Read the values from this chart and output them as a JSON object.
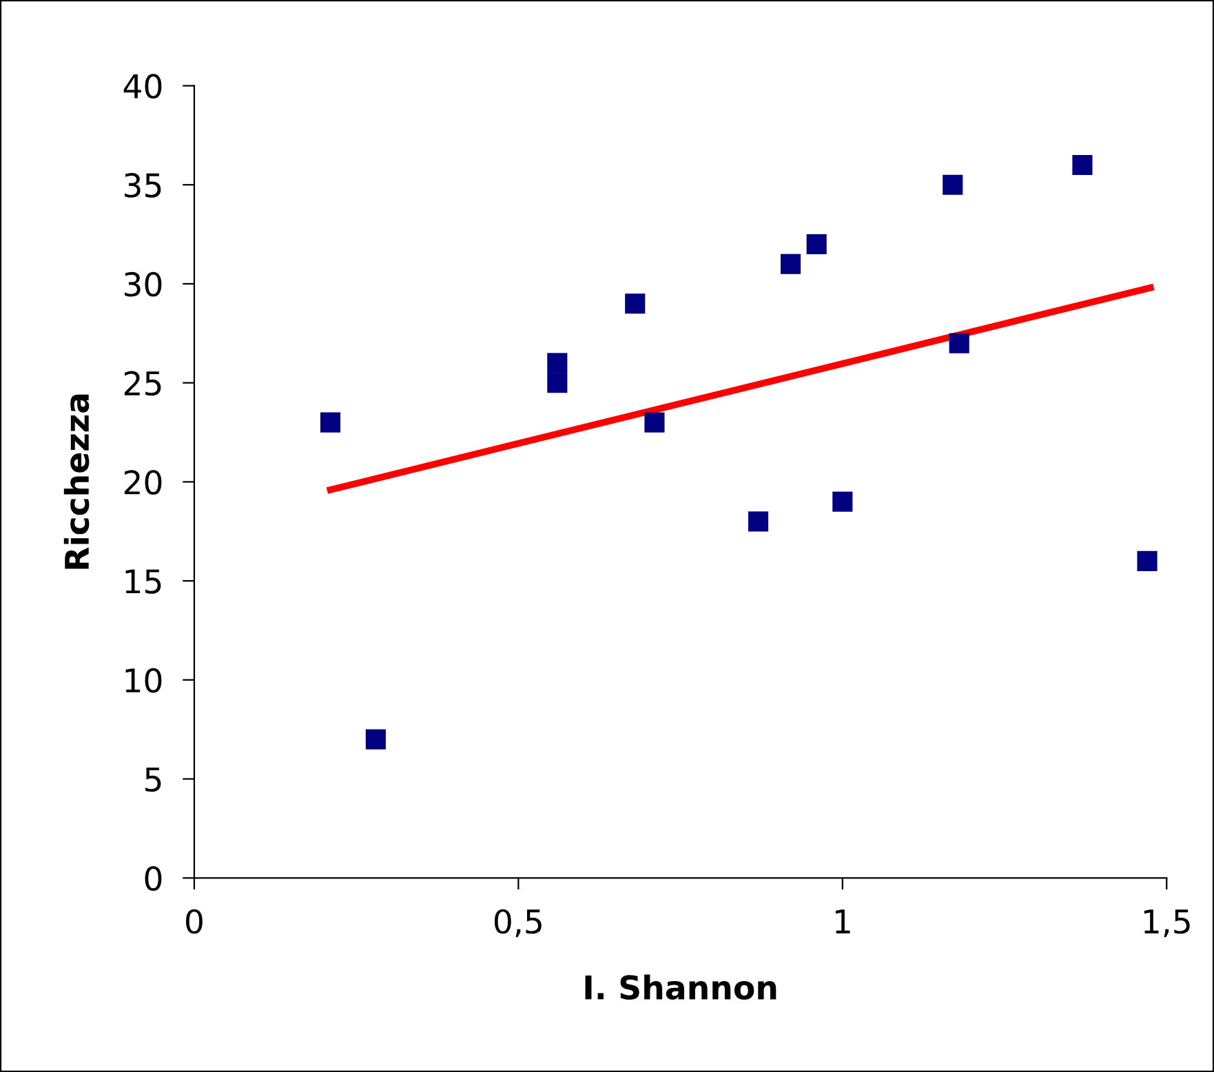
{
  "chart_data": {
    "type": "scatter",
    "xlabel": "I. Shannon",
    "ylabel": "Ricchezza",
    "series": [
      {
        "color": "#000080",
        "marker": "square",
        "x": [
          0.21,
          0.28,
          0.56,
          0.56,
          0.68,
          0.71,
          0.87,
          0.92,
          0.96,
          1.0,
          1.17,
          1.18,
          1.37,
          1.47
        ],
        "values": [
          23,
          7,
          26,
          25,
          29,
          23,
          18,
          31,
          32,
          19,
          35,
          27,
          36,
          16
        ]
      },
      {
        "type": "line",
        "color": "#ff0000",
        "marker": "none",
        "line_style": "solid",
        "x": [
          0.21,
          1.475
        ],
        "values": [
          19.6,
          29.8
        ]
      }
    ],
    "xlim": [
      0,
      1.5
    ],
    "xticks": [
      0,
      {
        "value": 0.5,
        "label": "0,5"
      },
      1,
      {
        "value": 1.5,
        "label": "1,5"
      }
    ],
    "ylim": [
      0,
      40
    ],
    "yticks": [
      0,
      5,
      10,
      15,
      20,
      25,
      30,
      35,
      40
    ],
    "grid": false,
    "legend": false
  }
}
